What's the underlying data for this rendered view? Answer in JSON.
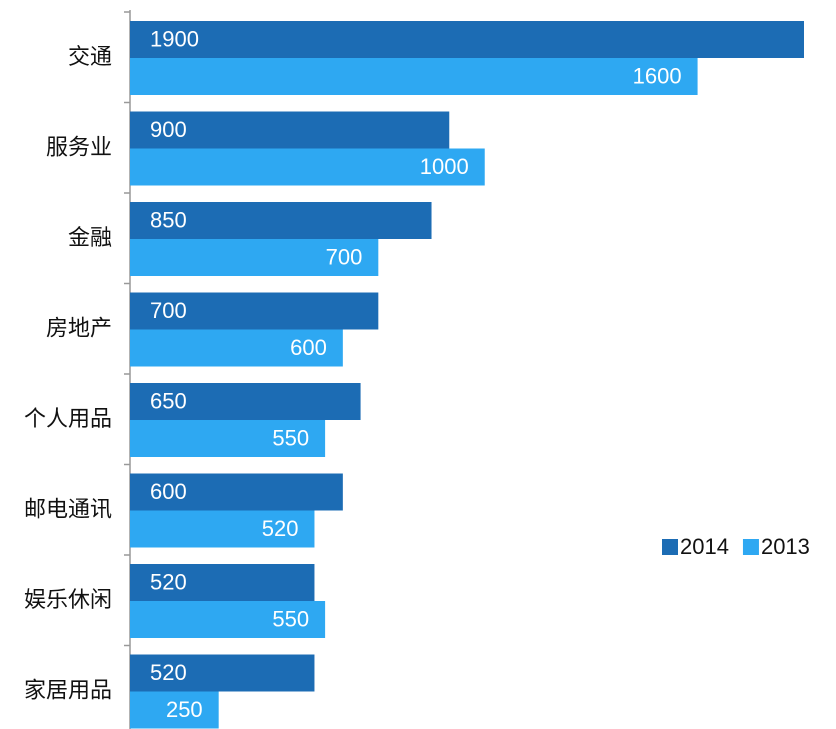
{
  "chart_data": {
    "type": "bar",
    "orientation": "horizontal",
    "categories": [
      "交通",
      "服务业",
      "金融",
      "房地产",
      "个人用品",
      "邮电通讯",
      "娱乐休闲",
      "家居用品"
    ],
    "series": [
      {
        "name": "2014",
        "color": "#1c6cb4",
        "values": [
          1900,
          900,
          850,
          700,
          650,
          600,
          520,
          520
        ]
      },
      {
        "name": "2013",
        "color": "#2ea8f2",
        "values": [
          1600,
          1000,
          700,
          600,
          550,
          520,
          550,
          250
        ]
      }
    ],
    "xlim": [
      0,
      1900
    ],
    "legend": "right"
  }
}
